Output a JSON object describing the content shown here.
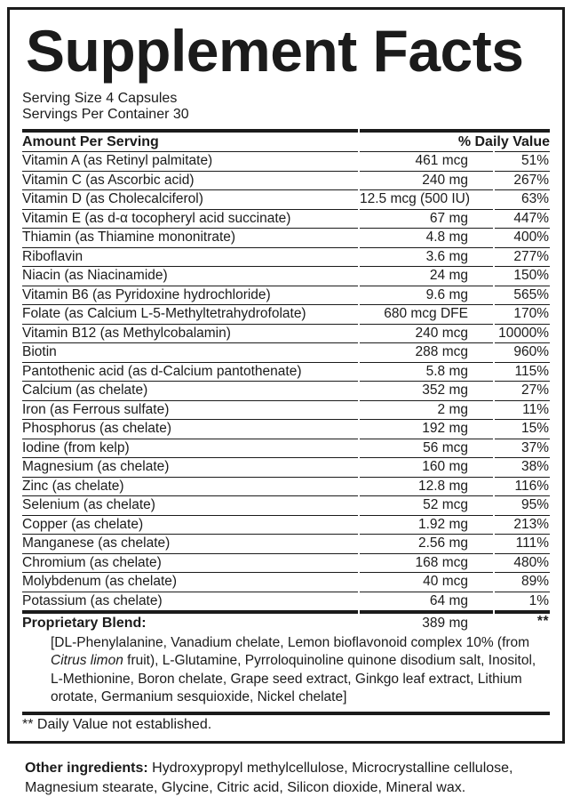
{
  "title": "Supplement Facts",
  "serving": {
    "size": "Serving Size 4 Capsules",
    "per_container": "Servings Per Container 30"
  },
  "table": {
    "header": {
      "amount_label": "Amount Per Serving",
      "dv_label": "% Daily Value"
    },
    "rows": [
      {
        "name": "Vitamin A (as Retinyl palmitate)",
        "amount": "461 mcg",
        "dv": "51%"
      },
      {
        "name": "Vitamin C (as Ascorbic acid)",
        "amount": "240 mg",
        "dv": "267%"
      },
      {
        "name": "Vitamin D (as Cholecalciferol)",
        "amount": "12.5 mcg (500 IU)",
        "dv": "63%"
      },
      {
        "name": "Vitamin E (as d-α tocopheryl acid succinate)",
        "amount": "67 mg",
        "dv": "447%"
      },
      {
        "name": "Thiamin (as Thiamine mononitrate)",
        "amount": "4.8 mg",
        "dv": "400%"
      },
      {
        "name": "Riboflavin",
        "amount": "3.6 mg",
        "dv": "277%"
      },
      {
        "name": "Niacin (as Niacinamide)",
        "amount": "24 mg",
        "dv": "150%"
      },
      {
        "name": "Vitamin B6 (as Pyridoxine hydrochloride)",
        "amount": "9.6 mg",
        "dv": "565%"
      },
      {
        "name": "Folate (as Calcium L-5-Methyltetrahydrofolate)",
        "amount": "680 mcg DFE",
        "dv": "170%"
      },
      {
        "name": "Vitamin B12 (as Methylcobalamin)",
        "amount": "240 mcg",
        "dv": "10000%"
      },
      {
        "name": "Biotin",
        "amount": "288 mcg",
        "dv": "960%"
      },
      {
        "name": "Pantothenic acid (as d-Calcium pantothenate)",
        "amount": "5.8 mg",
        "dv": "115%"
      },
      {
        "name": "Calcium (as chelate)",
        "amount": "352 mg",
        "dv": "27%"
      },
      {
        "name": "Iron (as Ferrous sulfate)",
        "amount": "2 mg",
        "dv": "11%"
      },
      {
        "name": "Phosphorus (as chelate)",
        "amount": "192 mg",
        "dv": "15%"
      },
      {
        "name": "Iodine (from kelp)",
        "amount": "56 mcg",
        "dv": "37%"
      },
      {
        "name": "Magnesium (as chelate)",
        "amount": "160 mg",
        "dv": "38%"
      },
      {
        "name": "Zinc (as chelate)",
        "amount": "12.8 mg",
        "dv": "116%"
      },
      {
        "name": "Selenium (as chelate)",
        "amount": "52 mcg",
        "dv": "95%"
      },
      {
        "name": "Copper (as chelate)",
        "amount": "1.92 mg",
        "dv": "213%"
      },
      {
        "name": "Manganese (as chelate)",
        "amount": "2.56 mg",
        "dv": "111%"
      },
      {
        "name": "Chromium (as chelate)",
        "amount": "168 mcg",
        "dv": "480%"
      },
      {
        "name": "Molybdenum (as chelate)",
        "amount": "40 mcg",
        "dv": "89%"
      },
      {
        "name": "Potassium (as chelate)",
        "amount": "64 mg",
        "dv": "1%"
      }
    ],
    "blend": {
      "name": "Proprietary Blend:",
      "amount": "389 mg",
      "dv": "**",
      "desc_pre": "[DL-Phenylalanine, Vanadium chelate, Lemon bioflavonoid complex 10% (from ",
      "desc_italic": "Citrus limon",
      "desc_post": " fruit), L-Glutamine, Pyrroloquinoline quinone disodium salt, Inositol, L-Methionine, Boron chelate, Grape seed extract, Ginkgo leaf extract, Lithium orotate, Germanium sesquioxide, Nickel chelate]"
    },
    "footnote": "** Daily Value not established."
  },
  "other_ingredients": {
    "label": "Other ingredients:",
    "text": " Hydroxypropyl methylcellulose, Microcrystalline cellulose, Magnesium stearate, Glycine, Citric acid, Silicon dioxide, Mineral wax."
  },
  "colors": {
    "ink": "#1b1b1b",
    "background": "#ffffff"
  }
}
